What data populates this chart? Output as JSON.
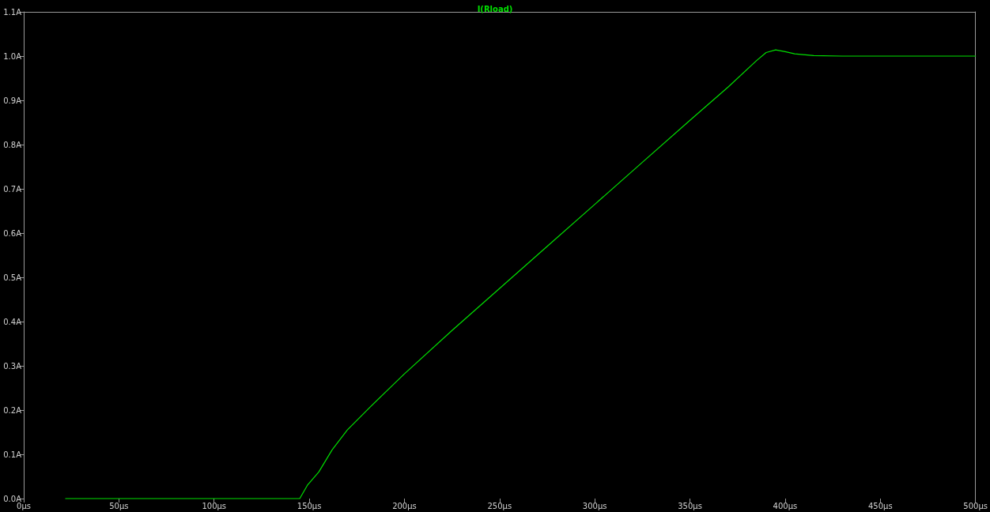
{
  "chart_data": {
    "type": "line",
    "title": "I(Rload)",
    "series": [
      {
        "color": "#00e000",
        "x": [
          22,
          145,
          149,
          155,
          162,
          170,
          182,
          200,
          225,
          250,
          275,
          300,
          325,
          350,
          370,
          385,
          390,
          395,
          400,
          405,
          415,
          430,
          450,
          500
        ],
        "values": [
          0,
          0,
          0.03,
          0.06,
          0.11,
          0.155,
          0.207,
          0.282,
          0.38,
          0.475,
          0.57,
          0.665,
          0.76,
          0.855,
          0.93,
          0.99,
          1.008,
          1.014,
          1.01,
          1.005,
          1.001,
          1.0,
          1.0,
          1.0
        ]
      }
    ],
    "xlim": [
      0,
      500
    ],
    "ylim": [
      0,
      1.1
    ],
    "xticks": [
      {
        "value": 0,
        "label": "0µs"
      },
      {
        "value": 50,
        "label": "50µs"
      },
      {
        "value": 100,
        "label": "100µs"
      },
      {
        "value": 150,
        "label": "150µs"
      },
      {
        "value": 200,
        "label": "200µs"
      },
      {
        "value": 250,
        "label": "250µs"
      },
      {
        "value": 300,
        "label": "300µs"
      },
      {
        "value": 350,
        "label": "350µs"
      },
      {
        "value": 400,
        "label": "400µs"
      },
      {
        "value": 450,
        "label": "450µs"
      },
      {
        "value": 500,
        "label": "500µs"
      }
    ],
    "yticks": [
      {
        "value": 0,
        "label": "0.0A"
      },
      {
        "value": 0.1,
        "label": "0.1A"
      },
      {
        "value": 0.2,
        "label": "0.2A"
      },
      {
        "value": 0.3,
        "label": "0.3A"
      },
      {
        "value": 0.4,
        "label": "0.4A"
      },
      {
        "value": 0.5,
        "label": "0.5A"
      },
      {
        "value": 0.6,
        "label": "0.6A"
      },
      {
        "value": 0.7,
        "label": "0.7A"
      },
      {
        "value": 0.8,
        "label": "0.8A"
      },
      {
        "value": 0.9,
        "label": "0.9A"
      },
      {
        "value": 1.0,
        "label": "1.0A"
      },
      {
        "value": 1.1,
        "label": "1.1A"
      }
    ],
    "grid": false,
    "marker": "none",
    "line_style": "solid"
  }
}
